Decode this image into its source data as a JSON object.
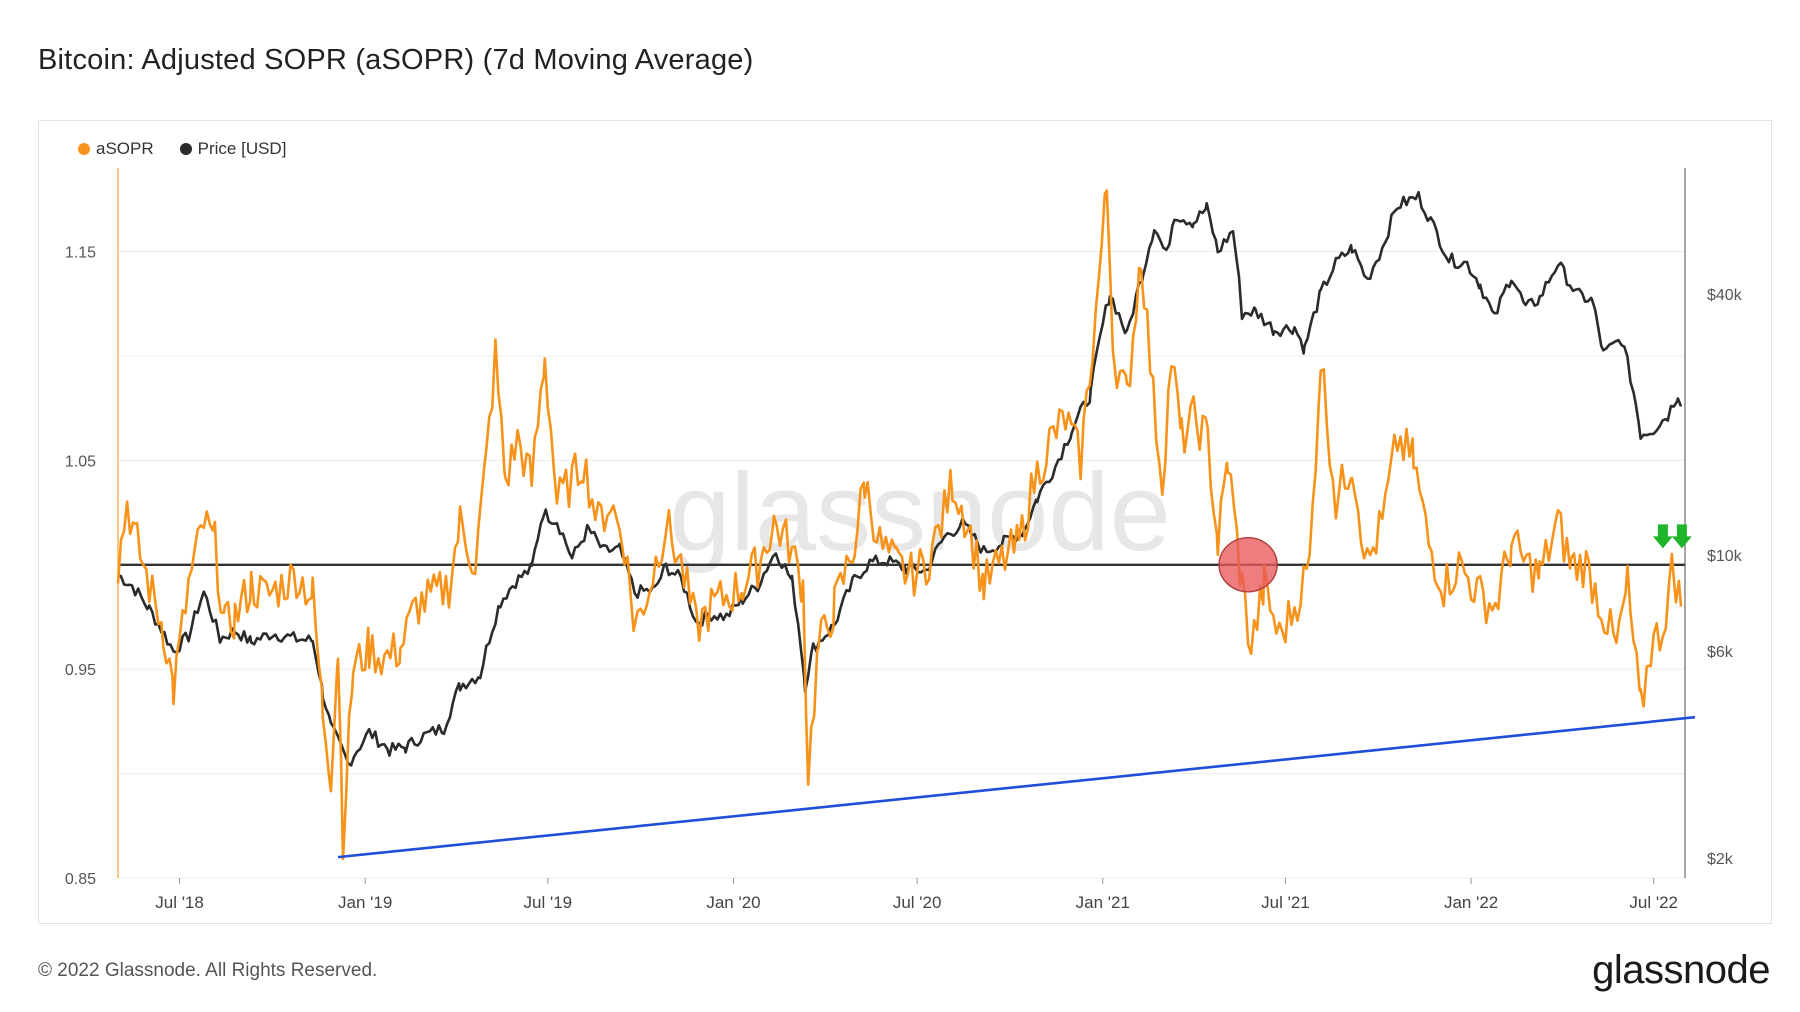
{
  "title": "Bitcoin: Adjusted SOPR (aSOPR) (7d Moving Average)",
  "footer": "© 2022 Glassnode. All Rights Reserved.",
  "brand": "glassnode",
  "watermark": "glassnode",
  "colors": {
    "asopr": "#f7931a",
    "price": "#2b2b2b",
    "trendline": "#1f4fd8",
    "highlight": "#e8595a",
    "arrows": "#1fb52b",
    "grid": "#ececec"
  },
  "chart_data": {
    "type": "line",
    "legend": [
      {
        "label": "aSOPR",
        "color": "#f7931a"
      },
      {
        "label": "Price [USD]",
        "color": "#2b2b2b"
      }
    ],
    "x_ticks": [
      "Jul '18",
      "Jan '19",
      "Jul '19",
      "Jan '20",
      "Jul '20",
      "Jan '21",
      "Jul '21",
      "Jan '22",
      "Jul '22"
    ],
    "y_left": {
      "ticks": [
        "0.85",
        "0.95",
        "1.05",
        "1.15"
      ],
      "range": [
        0.85,
        1.19
      ]
    },
    "y_right": {
      "ticks": [
        "$2k",
        "$6k",
        "$10k",
        "$40k"
      ],
      "scale": "log"
    },
    "x_range": [
      "2018-05-01",
      "2022-08-01"
    ],
    "series": [
      {
        "name": "aSOPR",
        "points": [
          [
            "2018-05-01",
            1.0
          ],
          [
            "2018-05-10",
            1.03
          ],
          [
            "2018-05-20",
            1.01
          ],
          [
            "2018-06-01",
            0.99
          ],
          [
            "2018-06-15",
            0.97
          ],
          [
            "2018-06-25",
            0.94
          ],
          [
            "2018-07-10",
            0.99
          ],
          [
            "2018-07-25",
            1.02
          ],
          [
            "2018-08-05",
            1.01
          ],
          [
            "2018-08-15",
            0.97
          ],
          [
            "2018-08-25",
            0.975
          ],
          [
            "2018-09-10",
            0.99
          ],
          [
            "2018-09-25",
            0.985
          ],
          [
            "2018-10-10",
            0.99
          ],
          [
            "2018-10-25",
            0.995
          ],
          [
            "2018-11-10",
            0.985
          ],
          [
            "2018-11-20",
            0.93
          ],
          [
            "2018-11-28",
            0.9
          ],
          [
            "2018-12-05",
            0.96
          ],
          [
            "2018-12-10",
            0.87
          ],
          [
            "2018-12-20",
            0.95
          ],
          [
            "2019-01-05",
            0.96
          ],
          [
            "2019-01-20",
            0.955
          ],
          [
            "2019-02-05",
            0.96
          ],
          [
            "2019-02-20",
            0.98
          ],
          [
            "2019-03-10",
            0.985
          ],
          [
            "2019-03-25",
            0.99
          ],
          [
            "2019-04-05",
            1.02
          ],
          [
            "2019-04-20",
            1.0
          ],
          [
            "2019-05-01",
            1.05
          ],
          [
            "2019-05-10",
            1.1
          ],
          [
            "2019-05-20",
            1.04
          ],
          [
            "2019-06-01",
            1.06
          ],
          [
            "2019-06-15",
            1.04
          ],
          [
            "2019-06-28",
            1.1
          ],
          [
            "2019-07-10",
            1.03
          ],
          [
            "2019-07-25",
            1.04
          ],
          [
            "2019-08-05",
            1.05
          ],
          [
            "2019-08-20",
            1.02
          ],
          [
            "2019-09-01",
            1.03
          ],
          [
            "2019-09-15",
            1.01
          ],
          [
            "2019-09-25",
            0.97
          ],
          [
            "2019-10-10",
            0.99
          ],
          [
            "2019-10-26",
            1.02
          ],
          [
            "2019-11-10",
            1.0
          ],
          [
            "2019-11-25",
            0.97
          ],
          [
            "2019-12-10",
            0.98
          ],
          [
            "2019-12-25",
            0.985
          ],
          [
            "2020-01-10",
            0.99
          ],
          [
            "2020-01-25",
            1.0
          ],
          [
            "2020-02-10",
            1.02
          ],
          [
            "2020-02-25",
            1.01
          ],
          [
            "2020-03-10",
            0.99
          ],
          [
            "2020-03-15",
            0.9
          ],
          [
            "2020-03-25",
            0.96
          ],
          [
            "2020-04-10",
            0.98
          ],
          [
            "2020-04-30",
            1.01
          ],
          [
            "2020-05-10",
            1.04
          ],
          [
            "2020-05-25",
            1.01
          ],
          [
            "2020-06-10",
            1.0
          ],
          [
            "2020-06-25",
            0.995
          ],
          [
            "2020-07-10",
            1.0
          ],
          [
            "2020-07-25",
            1.02
          ],
          [
            "2020-08-05",
            1.04
          ],
          [
            "2020-08-20",
            1.02
          ],
          [
            "2020-09-05",
            0.99
          ],
          [
            "2020-09-20",
            1.0
          ],
          [
            "2020-10-10",
            1.01
          ],
          [
            "2020-10-25",
            1.04
          ],
          [
            "2020-11-10",
            1.06
          ],
          [
            "2020-11-25",
            1.07
          ],
          [
            "2020-12-10",
            1.05
          ],
          [
            "2020-12-25",
            1.12
          ],
          [
            "2021-01-05",
            1.18
          ],
          [
            "2021-01-12",
            1.1
          ],
          [
            "2021-01-25",
            1.08
          ],
          [
            "2021-02-08",
            1.15
          ],
          [
            "2021-02-20",
            1.08
          ],
          [
            "2021-03-01",
            1.04
          ],
          [
            "2021-03-10",
            1.1
          ],
          [
            "2021-03-20",
            1.06
          ],
          [
            "2021-04-01",
            1.07
          ],
          [
            "2021-04-15",
            1.06
          ],
          [
            "2021-04-25",
            1.01
          ],
          [
            "2021-05-05",
            1.05
          ],
          [
            "2021-05-19",
            0.99
          ],
          [
            "2021-05-28",
            0.96
          ],
          [
            "2021-06-10",
            0.99
          ],
          [
            "2021-06-25",
            0.965
          ],
          [
            "2021-07-10",
            0.98
          ],
          [
            "2021-07-25",
            1.0
          ],
          [
            "2021-08-05",
            1.1
          ],
          [
            "2021-08-20",
            1.03
          ],
          [
            "2021-09-05",
            1.05
          ],
          [
            "2021-09-20",
            1.0
          ],
          [
            "2021-10-05",
            1.02
          ],
          [
            "2021-10-20",
            1.06
          ],
          [
            "2021-11-05",
            1.05
          ],
          [
            "2021-11-20",
            1.01
          ],
          [
            "2021-12-05",
            0.99
          ],
          [
            "2021-12-20",
            1.0
          ],
          [
            "2022-01-10",
            0.985
          ],
          [
            "2022-01-25",
            0.98
          ],
          [
            "2022-02-10",
            1.01
          ],
          [
            "2022-02-25",
            1.0
          ],
          [
            "2022-03-10",
            0.995
          ],
          [
            "2022-03-28",
            1.02
          ],
          [
            "2022-04-10",
            1.0
          ],
          [
            "2022-04-25",
            1.0
          ],
          [
            "2022-05-10",
            0.98
          ],
          [
            "2022-05-25",
            0.96
          ],
          [
            "2022-06-05",
            0.99
          ],
          [
            "2022-06-18",
            0.93
          ],
          [
            "2022-06-28",
            0.96
          ],
          [
            "2022-07-10",
            0.97
          ],
          [
            "2022-07-20",
            1.0
          ],
          [
            "2022-07-28",
            0.98
          ]
        ]
      },
      {
        "name": "Price [USD]",
        "points": [
          [
            "2018-05-01",
            9000
          ],
          [
            "2018-05-15",
            8500
          ],
          [
            "2018-06-01",
            7500
          ],
          [
            "2018-06-25",
            6000
          ],
          [
            "2018-07-10",
            6500
          ],
          [
            "2018-07-25",
            8200
          ],
          [
            "2018-08-10",
            6400
          ],
          [
            "2018-08-25",
            6700
          ],
          [
            "2018-09-10",
            6300
          ],
          [
            "2018-10-01",
            6600
          ],
          [
            "2018-10-25",
            6400
          ],
          [
            "2018-11-10",
            6350
          ],
          [
            "2018-11-20",
            4800
          ],
          [
            "2018-11-28",
            4000
          ],
          [
            "2018-12-15",
            3300
          ],
          [
            "2019-01-05",
            3900
          ],
          [
            "2019-01-25",
            3550
          ],
          [
            "2019-02-10",
            3600
          ],
          [
            "2019-02-25",
            3800
          ],
          [
            "2019-03-20",
            4000
          ],
          [
            "2019-04-05",
            5000
          ],
          [
            "2019-04-25",
            5300
          ],
          [
            "2019-05-15",
            7800
          ],
          [
            "2019-05-30",
            8700
          ],
          [
            "2019-06-15",
            9300
          ],
          [
            "2019-06-26",
            12500
          ],
          [
            "2019-07-10",
            12000
          ],
          [
            "2019-07-25",
            9800
          ],
          [
            "2019-08-10",
            11500
          ],
          [
            "2019-08-25",
            10200
          ],
          [
            "2019-09-10",
            10300
          ],
          [
            "2019-09-25",
            8200
          ],
          [
            "2019-10-15",
            8300
          ],
          [
            "2019-10-26",
            9400
          ],
          [
            "2019-11-10",
            8800
          ],
          [
            "2019-11-25",
            7000
          ],
          [
            "2019-12-10",
            7300
          ],
          [
            "2019-12-25",
            7200
          ],
          [
            "2020-01-10",
            7900
          ],
          [
            "2020-01-25",
            8500
          ],
          [
            "2020-02-12",
            10200
          ],
          [
            "2020-02-28",
            8700
          ],
          [
            "2020-03-12",
            5000
          ],
          [
            "2020-03-20",
            6100
          ],
          [
            "2020-04-10",
            6900
          ],
          [
            "2020-04-30",
            8800
          ],
          [
            "2020-05-15",
            9600
          ],
          [
            "2020-06-01",
            9700
          ],
          [
            "2020-06-20",
            9300
          ],
          [
            "2020-07-10",
            9200
          ],
          [
            "2020-07-28",
            11000
          ],
          [
            "2020-08-15",
            11800
          ],
          [
            "2020-09-05",
            10200
          ],
          [
            "2020-09-25",
            10700
          ],
          [
            "2020-10-15",
            11400
          ],
          [
            "2020-10-28",
            13500
          ],
          [
            "2020-11-15",
            16000
          ],
          [
            "2020-12-01",
            19300
          ],
          [
            "2020-12-20",
            23500
          ],
          [
            "2021-01-08",
            40000
          ],
          [
            "2021-01-25",
            32000
          ],
          [
            "2021-02-10",
            45000
          ],
          [
            "2021-02-21",
            57000
          ],
          [
            "2021-03-05",
            49000
          ],
          [
            "2021-03-13",
            61000
          ],
          [
            "2021-04-01",
            58500
          ],
          [
            "2021-04-14",
            63000
          ],
          [
            "2021-04-25",
            50000
          ],
          [
            "2021-05-10",
            56000
          ],
          [
            "2021-05-19",
            36000
          ],
          [
            "2021-06-01",
            36500
          ],
          [
            "2021-06-20",
            33000
          ],
          [
            "2021-07-10",
            33500
          ],
          [
            "2021-07-20",
            29800
          ],
          [
            "2021-08-05",
            40000
          ],
          [
            "2021-08-20",
            47000
          ],
          [
            "2021-09-05",
            51000
          ],
          [
            "2021-09-20",
            43000
          ],
          [
            "2021-10-05",
            51000
          ],
          [
            "2021-10-20",
            64000
          ],
          [
            "2021-11-10",
            67000
          ],
          [
            "2021-11-25",
            57000
          ],
          [
            "2021-12-10",
            48000
          ],
          [
            "2021-12-28",
            47000
          ],
          [
            "2022-01-10",
            42000
          ],
          [
            "2022-01-24",
            35000
          ],
          [
            "2022-02-10",
            44000
          ],
          [
            "2022-02-24",
            37000
          ],
          [
            "2022-03-10",
            39000
          ],
          [
            "2022-03-28",
            47000
          ],
          [
            "2022-04-15",
            40000
          ],
          [
            "2022-05-01",
            38500
          ],
          [
            "2022-05-12",
            29000
          ],
          [
            "2022-05-30",
            31500
          ],
          [
            "2022-06-13",
            22500
          ],
          [
            "2022-06-18",
            19000
          ],
          [
            "2022-07-01",
            19500
          ],
          [
            "2022-07-15",
            21000
          ],
          [
            "2022-07-25",
            23500
          ],
          [
            "2022-07-28",
            22000
          ]
        ]
      }
    ],
    "reference_lines": [
      {
        "name": "breakeven",
        "axis": "left",
        "value": 1.0
      },
      {
        "name": "support-trendline",
        "axis": "left",
        "from": [
          "2018-12-05",
          0.86
        ],
        "to": [
          "2022-08-01",
          0.927
        ]
      }
    ],
    "annotations": [
      {
        "type": "circle",
        "date": "2021-05-25",
        "value": 1.0
      },
      {
        "type": "down-arrows",
        "date": "2022-07-20",
        "value": 1.005,
        "count": 2
      }
    ]
  }
}
